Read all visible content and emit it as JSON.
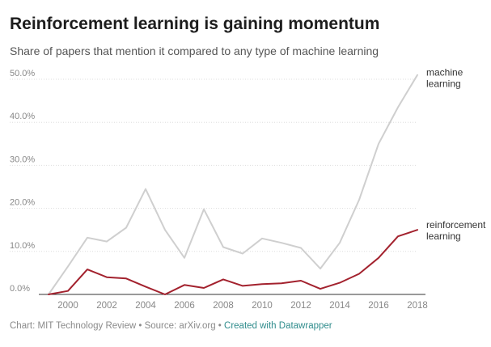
{
  "header": {
    "title": "Reinforcement learning is gaining momentum",
    "subtitle": "Share of papers that mention it compared to any type of machine learning"
  },
  "footer": {
    "chart_credit": "Chart: MIT Technology Review",
    "separator": " • ",
    "source": "Source: arXiv.org",
    "created_with": "Created with Datawrapper"
  },
  "colors": {
    "machine_learning": "#cfcfcf",
    "reinforcement_learning": "#a3222e",
    "grid": "#dddddd",
    "axis": "#333333",
    "label": "#888888"
  },
  "chart_data": {
    "type": "line",
    "title": "Reinforcement learning is gaining momentum",
    "subtitle": "Share of papers that mention it compared to any type of machine learning",
    "xlabel": "",
    "ylabel": "",
    "x": [
      1999,
      2000,
      2001,
      2002,
      2003,
      2004,
      2005,
      2006,
      2007,
      2008,
      2009,
      2010,
      2011,
      2012,
      2013,
      2014,
      2015,
      2016,
      2017,
      2018
    ],
    "x_ticks": [
      "2000",
      "2002",
      "2004",
      "2006",
      "2008",
      "2010",
      "2012",
      "2014",
      "2016",
      "2018"
    ],
    "x_tick_values": [
      2000,
      2002,
      2004,
      2006,
      2008,
      2010,
      2012,
      2014,
      2016,
      2018
    ],
    "y_ticks": [
      "0.0%",
      "10.0%",
      "20.0%",
      "30.0%",
      "40.0%",
      "50.0%"
    ],
    "y_tick_values": [
      0,
      10,
      20,
      30,
      40,
      50
    ],
    "xlim": [
      1999,
      2018
    ],
    "ylim": [
      0,
      50
    ],
    "grid": true,
    "series": [
      {
        "name": "machine learning",
        "label_lines": [
          "machine",
          "learning"
        ],
        "values": [
          0,
          6.5,
          13.2,
          12.3,
          15.5,
          24.5,
          15,
          8.5,
          19.8,
          11,
          9.5,
          13,
          12,
          10.8,
          6,
          12,
          22,
          35,
          43.5,
          51
        ]
      },
      {
        "name": "reinforcement learning",
        "label_lines": [
          "reinforcement",
          "learning"
        ],
        "values": [
          0,
          0.8,
          5.8,
          4,
          3.7,
          1.8,
          0,
          2.2,
          1.5,
          3.5,
          2,
          2.4,
          2.6,
          3.2,
          1.3,
          2.7,
          4.8,
          8.5,
          13.5,
          15
        ]
      }
    ]
  }
}
